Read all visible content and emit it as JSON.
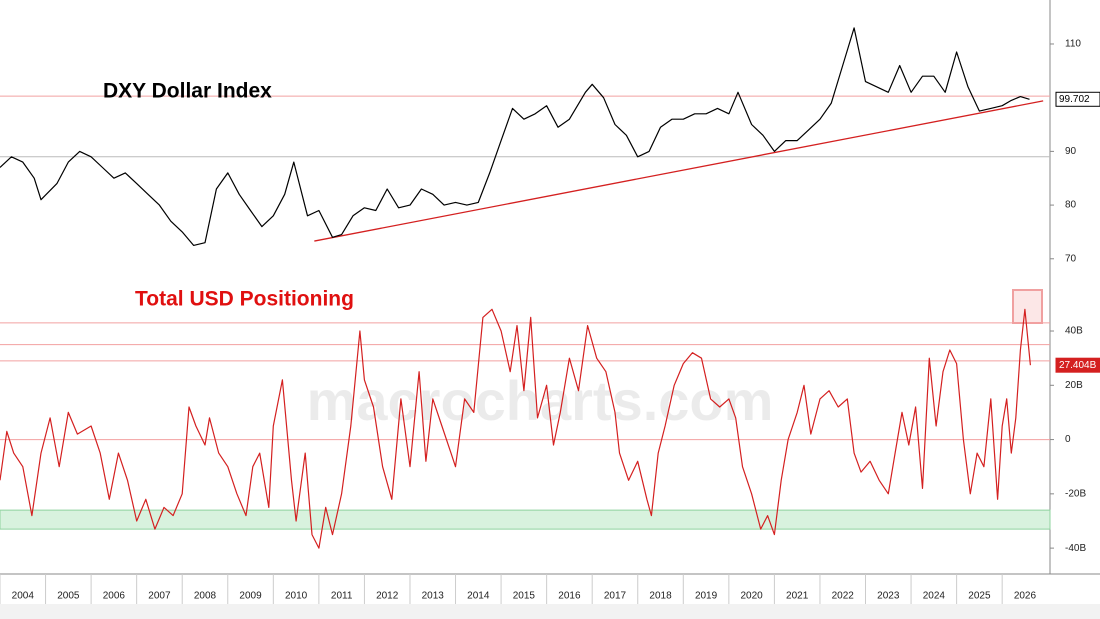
{
  "chart_data": [
    {
      "type": "line",
      "title": "DXY Dollar Index",
      "xlim": [
        2004,
        2027.05
      ],
      "ylim": [
        68.47,
        118.19
      ],
      "yticks": [
        70,
        80,
        90,
        110
      ],
      "hlines": [
        {
          "value": 100.3,
          "color": "#f2a0a0"
        },
        {
          "value": 89,
          "color": "#bbbbbb"
        }
      ],
      "trendline": {
        "x": [
          2010.9,
          2026.9
        ],
        "y": [
          73.3,
          99.4
        ],
        "color": "#d42020"
      },
      "last_label": "99.702",
      "series": [
        {
          "name": "DXY",
          "color": "#000000",
          "x": [
            2004.0,
            2004.25,
            2004.5,
            2004.75,
            2004.9,
            2005.25,
            2005.5,
            2005.75,
            2006.0,
            2006.25,
            2006.5,
            2006.75,
            2007.0,
            2007.25,
            2007.5,
            2007.75,
            2008.0,
            2008.25,
            2008.5,
            2008.75,
            2009.0,
            2009.25,
            2009.5,
            2009.75,
            2010.0,
            2010.25,
            2010.45,
            2010.75,
            2011.0,
            2011.3,
            2011.5,
            2011.75,
            2012.0,
            2012.25,
            2012.5,
            2012.75,
            2013.0,
            2013.25,
            2013.5,
            2013.75,
            2014.0,
            2014.25,
            2014.5,
            2014.75,
            2015.0,
            2015.25,
            2015.5,
            2015.75,
            2016.0,
            2016.25,
            2016.5,
            2016.85,
            2017.0,
            2017.25,
            2017.5,
            2017.75,
            2018.0,
            2018.25,
            2018.5,
            2018.75,
            2019.0,
            2019.25,
            2019.5,
            2019.75,
            2020.0,
            2020.2,
            2020.5,
            2020.75,
            2021.0,
            2021.25,
            2021.5,
            2021.75,
            2022.0,
            2022.25,
            2022.5,
            2022.75,
            2023.0,
            2023.25,
            2023.5,
            2023.75,
            2024.0,
            2024.25,
            2024.5,
            2024.75,
            2025.0,
            2025.25,
            2025.5,
            2025.75,
            2026.0,
            2026.2,
            2026.4,
            2026.6
          ],
          "values": [
            87,
            89,
            88,
            85,
            81,
            84,
            88,
            90,
            89,
            87,
            85,
            86,
            84,
            82,
            80,
            77,
            75,
            72.5,
            73,
            83,
            86,
            82,
            79,
            76,
            78,
            82,
            88,
            78,
            79,
            74,
            74.5,
            78,
            79.5,
            79,
            83,
            79.5,
            80,
            83,
            82,
            80,
            80.5,
            80,
            80.5,
            86,
            92,
            98,
            96,
            97,
            98.5,
            94.5,
            96,
            101,
            102.5,
            100,
            95,
            93,
            89,
            90,
            94.5,
            96,
            96,
            97,
            97,
            98,
            97,
            101,
            95,
            93,
            90,
            92,
            92,
            94,
            96,
            99,
            106,
            113,
            103,
            102,
            101,
            106,
            101,
            104,
            104,
            101,
            108.5,
            102,
            97.5,
            98,
            98.5,
            99.5,
            100.2,
            99.702
          ]
        }
      ]
    },
    {
      "type": "line",
      "title": "Total USD Positioning",
      "watermark": "macrocharts.com",
      "xlim": [
        2004,
        2027.05
      ],
      "ylim": [
        -48.8,
        58.8
      ],
      "yticks": [
        {
          "value": 40,
          "label": "40B"
        },
        {
          "value": 20,
          "label": "20B"
        },
        0,
        {
          "value": -20,
          "label": "-20B"
        },
        {
          "value": -40,
          "label": "-40B"
        }
      ],
      "xticks": [
        2004,
        2005,
        2006,
        2007,
        2008,
        2009,
        2010,
        2011,
        2012,
        2013,
        2014,
        2015,
        2016,
        2017,
        2018,
        2019,
        2020,
        2021,
        2022,
        2023,
        2024,
        2025,
        2026
      ],
      "hlines": [
        {
          "value": 43,
          "color": "#f2a0a0"
        },
        {
          "value": 35,
          "color": "#f2a0a0"
        },
        {
          "value": 29,
          "color": "#f2a0a0"
        },
        {
          "value": 0,
          "color": "#f2a0a0"
        }
      ],
      "band": {
        "range": [
          -33,
          -26
        ],
        "color": "#d8f2de"
      },
      "last_label": "27.404B",
      "series": [
        {
          "name": "USD Positioning",
          "color": "#d42020",
          "x": [
            2004.0,
            2004.15,
            2004.3,
            2004.5,
            2004.7,
            2004.9,
            2005.1,
            2005.3,
            2005.5,
            2005.7,
            2006.0,
            2006.2,
            2006.4,
            2006.6,
            2006.8,
            2007.0,
            2007.2,
            2007.4,
            2007.6,
            2007.8,
            2008.0,
            2008.15,
            2008.3,
            2008.5,
            2008.6,
            2008.8,
            2009.0,
            2009.2,
            2009.4,
            2009.55,
            2009.7,
            2009.9,
            2010.0,
            2010.2,
            2010.4,
            2010.5,
            2010.7,
            2010.85,
            2011.0,
            2011.15,
            2011.3,
            2011.5,
            2011.7,
            2011.9,
            2012.0,
            2012.2,
            2012.4,
            2012.6,
            2012.8,
            2013.0,
            2013.2,
            2013.35,
            2013.5,
            2013.7,
            2013.9,
            2014.0,
            2014.2,
            2014.4,
            2014.6,
            2014.8,
            2015.0,
            2015.2,
            2015.35,
            2015.5,
            2015.65,
            2015.8,
            2016.0,
            2016.15,
            2016.3,
            2016.5,
            2016.7,
            2016.9,
            2017.1,
            2017.3,
            2017.5,
            2017.6,
            2017.8,
            2018.0,
            2018.2,
            2018.3,
            2018.45,
            2018.6,
            2018.8,
            2019.0,
            2019.2,
            2019.4,
            2019.6,
            2019.8,
            2020.0,
            2020.15,
            2020.3,
            2020.5,
            2020.7,
            2020.85,
            2021.0,
            2021.15,
            2021.3,
            2021.5,
            2021.65,
            2021.8,
            2022.0,
            2022.2,
            2022.4,
            2022.6,
            2022.75,
            2022.9,
            2023.1,
            2023.3,
            2023.5,
            2023.65,
            2023.8,
            2023.95,
            2024.1,
            2024.25,
            2024.4,
            2024.55,
            2024.7,
            2024.85,
            2025.0,
            2025.15,
            2025.3,
            2025.45,
            2025.6,
            2025.75,
            2025.9,
            2026.0,
            2026.1,
            2026.2,
            2026.3,
            2026.4,
            2026.5,
            2026.57,
            2026.62
          ],
          "values": [
            -15,
            3,
            -5,
            -10,
            -28,
            -5,
            8,
            -10,
            10,
            2,
            5,
            -5,
            -22,
            -5,
            -15,
            -30,
            -22,
            -33,
            -25,
            -28,
            -20,
            12,
            5,
            -2,
            8,
            -5,
            -10,
            -20,
            -28,
            -10,
            -5,
            -25,
            5,
            22,
            -15,
            -30,
            -5,
            -35,
            -40,
            -25,
            -35,
            -20,
            5,
            40,
            22,
            12,
            -10,
            -22,
            15,
            -10,
            25,
            -8,
            15,
            5,
            -5,
            -10,
            15,
            10,
            45,
            48,
            40,
            25,
            42,
            18,
            45,
            8,
            20,
            -2,
            10,
            30,
            18,
            42,
            30,
            25,
            10,
            -5,
            -15,
            -8,
            -22,
            -28,
            -5,
            5,
            20,
            28,
            32,
            30,
            15,
            12,
            15,
            8,
            -10,
            -20,
            -33,
            -28,
            -35,
            -15,
            0,
            10,
            20,
            2,
            15,
            18,
            12,
            15,
            -5,
            -12,
            -8,
            -15,
            -20,
            -5,
            10,
            -2,
            12,
            -18,
            30,
            5,
            25,
            33,
            28,
            0,
            -20,
            -5,
            -10,
            15,
            -22,
            5,
            15,
            -5,
            8,
            33,
            48,
            36,
            27.404
          ]
        }
      ]
    }
  ]
}
